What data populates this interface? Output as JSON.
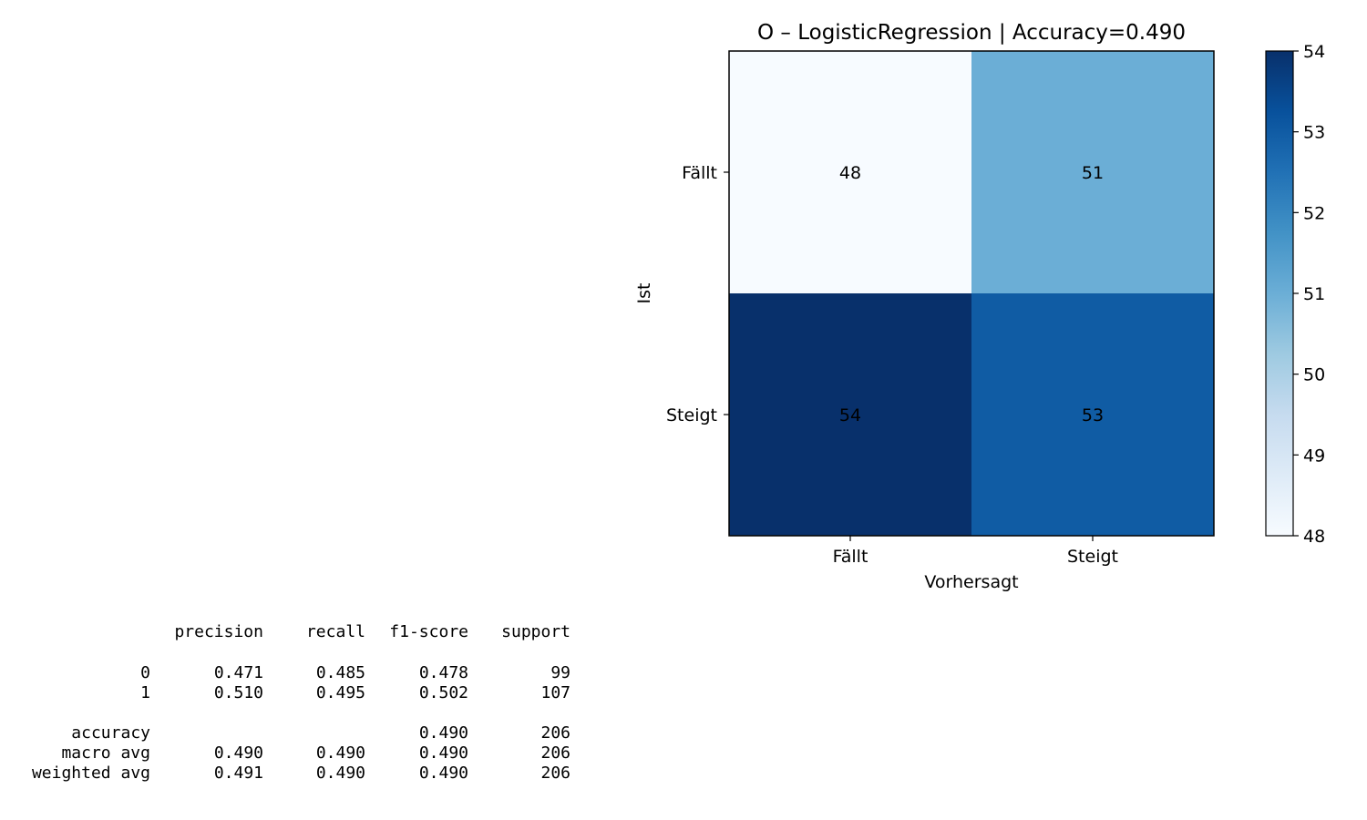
{
  "chart_data": [
    {
      "type": "heatmap",
      "title": "O – LogisticRegression | Accuracy=0.490",
      "xlabel": "Vorhersagt",
      "ylabel": "Ist",
      "x_categories": [
        "Fällt",
        "Steigt"
      ],
      "y_categories": [
        "Fällt",
        "Steigt"
      ],
      "values": [
        [
          48,
          51
        ],
        [
          54,
          53
        ]
      ],
      "colormap": "Blues",
      "colorbar": {
        "min": 48,
        "max": 54,
        "ticks": [
          "48",
          "49",
          "50",
          "51",
          "52",
          "53",
          "54"
        ]
      },
      "grid": false
    },
    {
      "type": "table",
      "columns": [
        "precision",
        "recall",
        "f1-score",
        "support"
      ],
      "rows": [
        {
          "label": "0",
          "values": [
            "0.471",
            "0.485",
            "0.478",
            "99"
          ]
        },
        {
          "label": "1",
          "values": [
            "0.510",
            "0.495",
            "0.502",
            "107"
          ]
        },
        {
          "label": "accuracy",
          "values": [
            "",
            "",
            "0.490",
            "206"
          ]
        },
        {
          "label": "macro avg",
          "values": [
            "0.490",
            "0.490",
            "0.490",
            "206"
          ]
        },
        {
          "label": "weighted avg",
          "values": [
            "0.491",
            "0.490",
            "0.490",
            "206"
          ]
        }
      ]
    }
  ]
}
